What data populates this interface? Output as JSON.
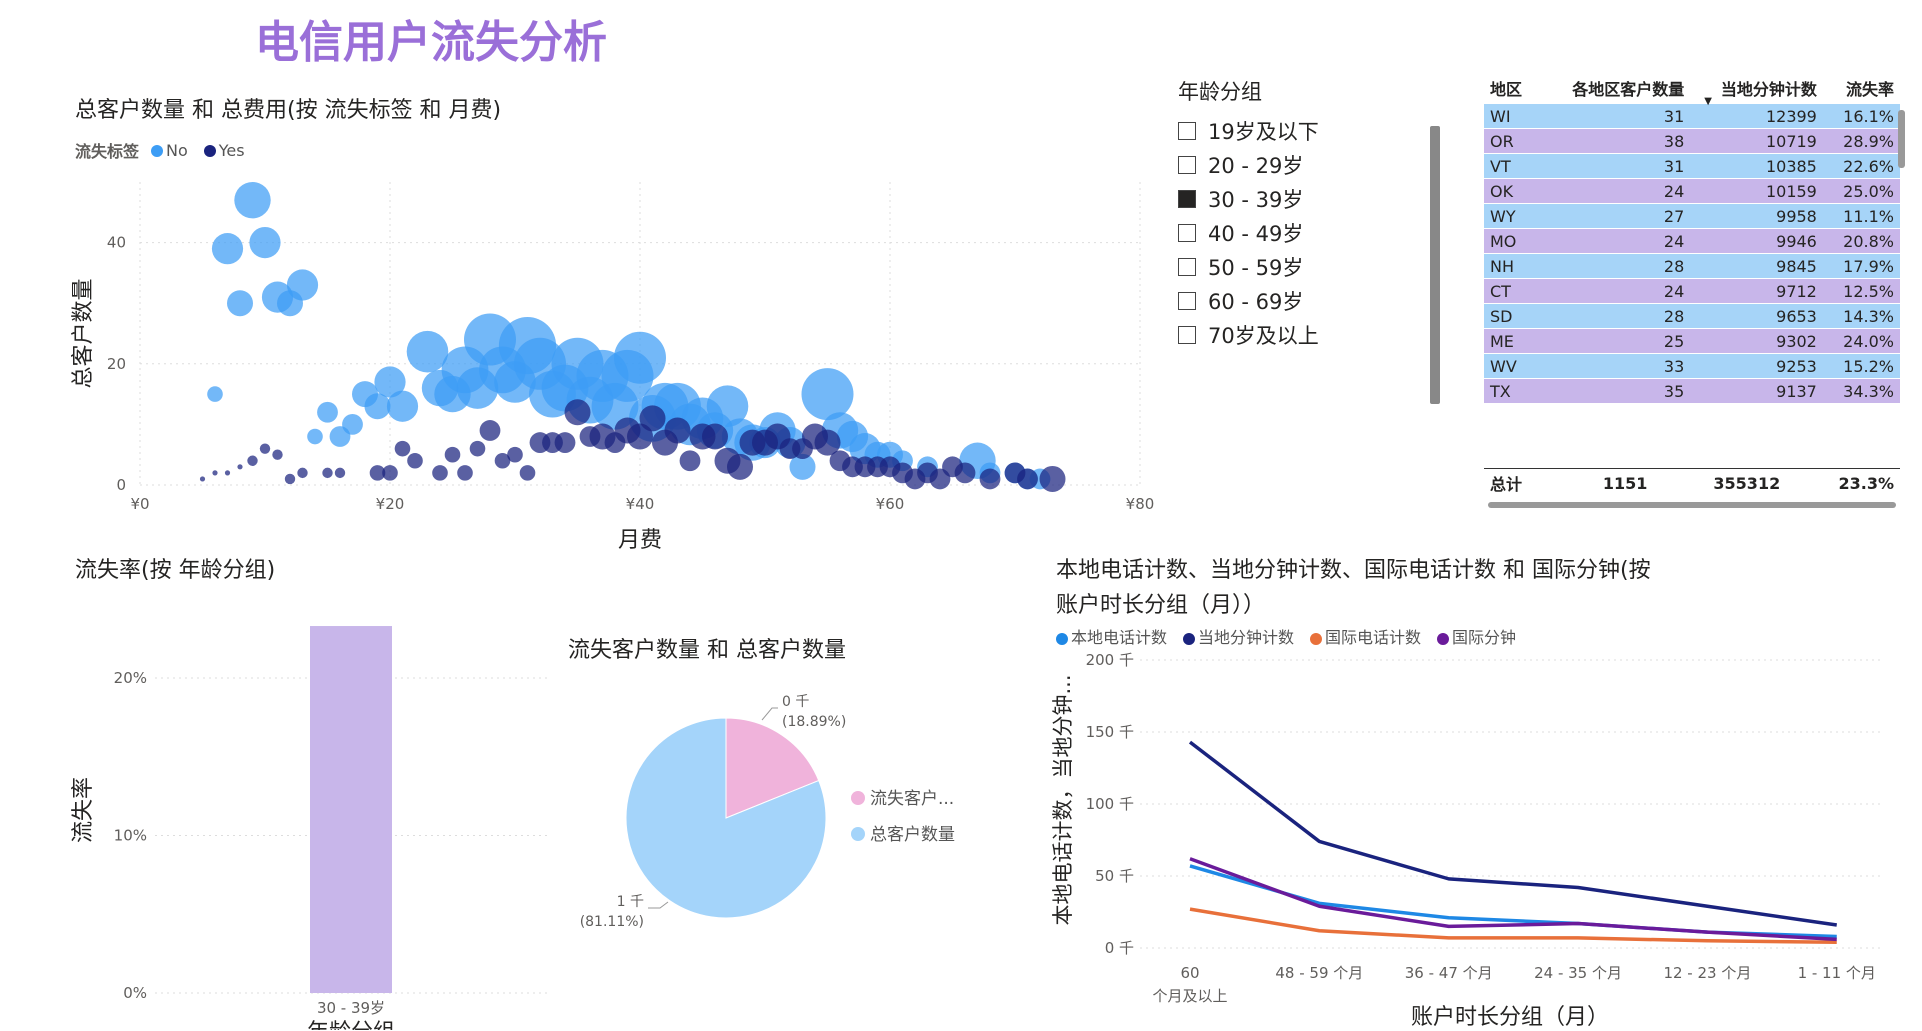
{
  "page": {
    "title": "电信用户流失分析"
  },
  "colors": {
    "title": "#9a6fd8",
    "no": "#3d9df5",
    "yes": "#1a237e"
  },
  "scatter": {
    "title": "总客户数量 和 总费用(按 流失标签 和 月费)",
    "legend_title": "流失标签",
    "legend": [
      {
        "name": "No",
        "color": "#3d9df5"
      },
      {
        "name": "Yes",
        "color": "#1a237e"
      }
    ],
    "ylabel": "总客户数量",
    "xlabel": "月费",
    "x_ticks": [
      "¥0",
      "¥20",
      "¥40",
      "¥60",
      "¥80"
    ],
    "y_ticks": [
      "0",
      "20",
      "40"
    ]
  },
  "chart_data": [
    {
      "type": "scatter",
      "title": "总客户数量 和 总费用(按 流失标签 和 月费)",
      "xlabel": "月费",
      "ylabel": "总客户数量",
      "xlim": [
        0,
        80
      ],
      "ylim": [
        0,
        50
      ],
      "series": [
        {
          "name": "No",
          "points": [
            [
              6,
              15,
              3
            ],
            [
              7,
              39,
              6
            ],
            [
              8,
              30,
              5
            ],
            [
              9,
              47,
              7
            ],
            [
              10,
              40,
              6
            ],
            [
              11,
              31,
              6
            ],
            [
              12,
              30,
              5
            ],
            [
              13,
              33,
              6
            ],
            [
              14,
              8,
              3
            ],
            [
              15,
              12,
              4
            ],
            [
              16,
              8,
              4
            ],
            [
              17,
              10,
              4
            ],
            [
              18,
              15,
              5
            ],
            [
              19,
              13,
              5
            ],
            [
              20,
              17,
              6
            ],
            [
              21,
              13,
              6
            ],
            [
              23,
              22,
              8
            ],
            [
              24,
              16,
              7
            ],
            [
              25,
              15,
              7
            ],
            [
              26,
              19,
              9
            ],
            [
              27,
              16,
              8
            ],
            [
              28,
              24,
              10
            ],
            [
              29,
              19,
              9
            ],
            [
              30,
              17,
              8
            ],
            [
              31,
              23,
              11
            ],
            [
              32,
              20,
              10
            ],
            [
              33,
              15,
              9
            ],
            [
              34,
              16,
              9
            ],
            [
              35,
              20,
              10
            ],
            [
              36,
              14,
              9
            ],
            [
              37,
              18,
              10
            ],
            [
              38,
              13,
              9
            ],
            [
              39,
              18,
              10
            ],
            [
              40,
              21,
              10
            ],
            [
              41,
              11,
              9
            ],
            [
              42,
              13,
              9
            ],
            [
              43,
              13,
              9
            ],
            [
              44,
              10,
              8
            ],
            [
              45,
              11,
              8
            ],
            [
              46,
              9,
              7
            ],
            [
              47,
              13,
              8
            ],
            [
              48,
              8,
              7
            ],
            [
              49,
              7,
              7
            ],
            [
              50,
              7,
              6
            ],
            [
              51,
              9,
              7
            ],
            [
              52,
              7,
              6
            ],
            [
              53,
              3,
              5
            ],
            [
              55,
              15,
              10
            ],
            [
              56,
              9,
              7
            ],
            [
              57,
              8,
              6
            ],
            [
              58,
              6,
              6
            ],
            [
              59,
              5,
              5
            ],
            [
              60,
              5,
              5
            ],
            [
              61,
              4,
              4
            ],
            [
              63,
              3,
              4
            ],
            [
              67,
              4,
              7
            ],
            [
              68,
              2,
              4
            ],
            [
              70,
              2,
              4
            ],
            [
              71,
              1,
              4
            ],
            [
              72,
              1,
              4
            ]
          ]
        },
        {
          "name": "Yes",
          "points": [
            [
              5,
              1,
              1
            ],
            [
              6,
              2,
              1
            ],
            [
              7,
              2,
              1
            ],
            [
              8,
              3,
              1
            ],
            [
              9,
              4,
              2
            ],
            [
              10,
              6,
              2
            ],
            [
              11,
              5,
              2
            ],
            [
              12,
              1,
              2
            ],
            [
              13,
              2,
              2
            ],
            [
              15,
              2,
              2
            ],
            [
              16,
              2,
              2
            ],
            [
              19,
              2,
              3
            ],
            [
              20,
              2,
              3
            ],
            [
              21,
              6,
              3
            ],
            [
              22,
              4,
              3
            ],
            [
              24,
              2,
              3
            ],
            [
              25,
              5,
              3
            ],
            [
              26,
              2,
              3
            ],
            [
              27,
              6,
              3
            ],
            [
              28,
              9,
              4
            ],
            [
              29,
              4,
              3
            ],
            [
              30,
              5,
              3
            ],
            [
              31,
              2,
              3
            ],
            [
              32,
              7,
              4
            ],
            [
              33,
              7,
              4
            ],
            [
              34,
              7,
              4
            ],
            [
              35,
              12,
              5
            ],
            [
              36,
              8,
              4
            ],
            [
              37,
              8,
              5
            ],
            [
              38,
              7,
              4
            ],
            [
              39,
              9,
              5
            ],
            [
              40,
              8,
              5
            ],
            [
              41,
              11,
              5
            ],
            [
              42,
              7,
              5
            ],
            [
              43,
              9,
              5
            ],
            [
              44,
              4,
              4
            ],
            [
              45,
              8,
              5
            ],
            [
              46,
              8,
              5
            ],
            [
              47,
              4,
              5
            ],
            [
              48,
              3,
              5
            ],
            [
              49,
              7,
              5
            ],
            [
              50,
              7,
              5
            ],
            [
              51,
              8,
              5
            ],
            [
              52,
              6,
              4
            ],
            [
              53,
              6,
              4
            ],
            [
              54,
              8,
              5
            ],
            [
              55,
              7,
              5
            ],
            [
              56,
              4,
              4
            ],
            [
              57,
              3,
              4
            ],
            [
              58,
              3,
              4
            ],
            [
              59,
              3,
              4
            ],
            [
              60,
              3,
              4
            ],
            [
              61,
              2,
              4
            ],
            [
              62,
              1,
              4
            ],
            [
              63,
              2,
              4
            ],
            [
              64,
              1,
              4
            ],
            [
              65,
              3,
              4
            ],
            [
              66,
              2,
              4
            ],
            [
              68,
              1,
              4
            ],
            [
              70,
              2,
              4
            ],
            [
              71,
              1,
              4
            ],
            [
              73,
              1,
              5
            ]
          ]
        }
      ]
    },
    {
      "type": "bar",
      "title": "流失率(按 年龄分组)",
      "xlabel": "年龄分组",
      "ylabel": "流失率",
      "categories": [
        "30 - 39岁"
      ],
      "values": [
        23.3
      ],
      "ylim": [
        0,
        24
      ],
      "y_ticks": [
        "0%",
        "10%",
        "20%"
      ]
    },
    {
      "type": "pie",
      "title": "流失客户数量 和 总客户数量",
      "labels": [
        "流失客户...",
        "总客户数量"
      ],
      "values": [
        18.89,
        81.11
      ],
      "data_labels": [
        {
          "value": "0 千",
          "pct": "(18.89%)"
        },
        {
          "value": "1 千",
          "pct": "(81.11%)"
        }
      ],
      "colors": [
        "#f0b3db",
        "#a4d4fa"
      ]
    },
    {
      "type": "line",
      "title": "本地电话计数、当地分钟计数、国际电话计数 和 国际分钟(按 账户时长分组（月）)",
      "xlabel": "账户时长分组（月）",
      "ylabel": "本地电话计数，当地分钟...",
      "categories": [
        "60 个月及以上",
        "48 - 59 个月",
        "36 - 47 个月",
        "24 - 35 个月",
        "12 - 23 个月",
        "1 - 11 个月"
      ],
      "ylim": [
        0,
        200
      ],
      "y_ticks": [
        "0 千",
        "50 千",
        "100 千",
        "150 千",
        "200 千"
      ],
      "series": [
        {
          "name": "本地电话计数",
          "color": "#1e88e5",
          "values": [
            57,
            31,
            21,
            17,
            11,
            8
          ]
        },
        {
          "name": "当地分钟计数",
          "color": "#1a237e",
          "values": [
            143,
            74,
            48,
            42,
            29,
            16
          ]
        },
        {
          "name": "国际电话计数",
          "color": "#e8703a",
          "values": [
            27,
            12,
            7,
            7,
            5,
            4
          ]
        },
        {
          "name": "国际分钟",
          "color": "#6a1b9a",
          "values": [
            62,
            29,
            15,
            17,
            11,
            6
          ]
        }
      ]
    }
  ],
  "slicer": {
    "title": "年龄分组",
    "items": [
      {
        "label": "19岁及以下",
        "checked": false
      },
      {
        "label": "20 - 29岁",
        "checked": false
      },
      {
        "label": "30 - 39岁",
        "checked": true
      },
      {
        "label": "40 - 49岁",
        "checked": false
      },
      {
        "label": "50 - 59岁",
        "checked": false
      },
      {
        "label": "60 - 69岁",
        "checked": false
      },
      {
        "label": "70岁及以上",
        "checked": false
      }
    ]
  },
  "table": {
    "headers": [
      "地区",
      "各地区客户数量",
      "当地分钟计数",
      "流失率"
    ],
    "rows": [
      [
        "WI",
        "31",
        "12399",
        "16.1%"
      ],
      [
        "OR",
        "38",
        "10719",
        "28.9%"
      ],
      [
        "VT",
        "31",
        "10385",
        "22.6%"
      ],
      [
        "OK",
        "24",
        "10159",
        "25.0%"
      ],
      [
        "WY",
        "27",
        "9958",
        "11.1%"
      ],
      [
        "MO",
        "24",
        "9946",
        "20.8%"
      ],
      [
        "NH",
        "28",
        "9845",
        "17.9%"
      ],
      [
        "CT",
        "24",
        "9712",
        "12.5%"
      ],
      [
        "SD",
        "28",
        "9653",
        "14.3%"
      ],
      [
        "ME",
        "25",
        "9302",
        "24.0%"
      ],
      [
        "WV",
        "33",
        "9253",
        "15.2%"
      ],
      [
        "TX",
        "35",
        "9137",
        "34.3%"
      ]
    ],
    "total": [
      "总计",
      "1151",
      "355312",
      "23.3%"
    ]
  },
  "bar": {
    "title": "流失率(按 年龄分组)",
    "xlabel": "年龄分组",
    "ylabel": "流失率",
    "category": "30 - 39岁",
    "y_ticks": [
      "0%",
      "10%",
      "20%"
    ]
  },
  "pie": {
    "title": "流失客户数量 和 总客户数量",
    "legend": [
      "流失客户...",
      "总客户数量"
    ],
    "label_small_value": "0 千",
    "label_small_pct": "(18.89%)",
    "label_big_value": "1 千",
    "label_big_pct": "(81.11%)"
  },
  "line": {
    "title_line1": "本地电话计数、当地分钟计数、国际电话计数 和 国际分钟(按",
    "title_line2": "账户时长分组（月））",
    "ylabel": "本地电话计数，当地分钟...",
    "xlabel": "账户时长分组（月）",
    "legend": [
      "本地电话计数",
      "当地分钟计数",
      "国际电话计数",
      "国际分钟"
    ],
    "x_ticks": [
      {
        "l1": "60",
        "l2": "个月及以上"
      },
      {
        "l1": "48 - 59 个月",
        "l2": ""
      },
      {
        "l1": "36 - 47 个月",
        "l2": ""
      },
      {
        "l1": "24 - 35 个月",
        "l2": ""
      },
      {
        "l1": "12 - 23 个月",
        "l2": ""
      },
      {
        "l1": "1 - 11 个月",
        "l2": ""
      }
    ],
    "y_ticks": [
      "0 千",
      "50 千",
      "100 千",
      "150 千",
      "200 千"
    ]
  }
}
